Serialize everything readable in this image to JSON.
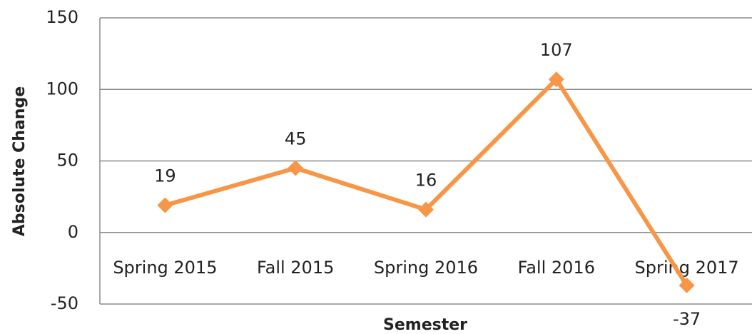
{
  "chart_data": {
    "type": "line",
    "x_label": "Semester",
    "y_label": "Absolute Change",
    "categories": [
      "Spring 2015",
      "Fall 2015",
      "Spring 2016",
      "Fall 2016",
      "Spring 2017"
    ],
    "values": [
      19,
      45,
      16,
      107,
      -37
    ],
    "color": "#f79646",
    "ylim": [
      -50,
      150
    ],
    "yticks": [
      -50,
      0,
      50,
      100,
      150
    ],
    "grid": true
  }
}
